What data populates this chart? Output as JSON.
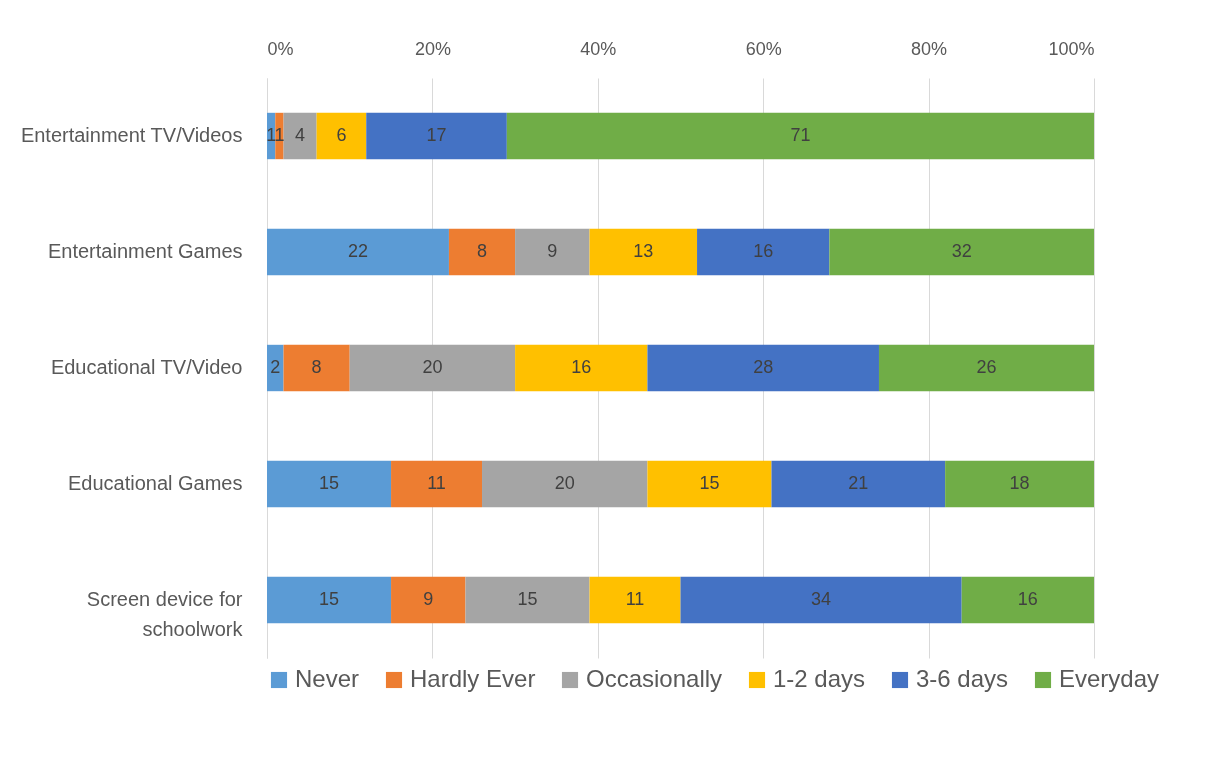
{
  "chart_data": {
    "type": "bar",
    "orientation": "horizontal",
    "stacked": true,
    "categories": [
      "Entertainment TV/Videos",
      "Entertainment Games",
      "Educational TV/Video",
      "Educational Games",
      "Screen device for schoolwork"
    ],
    "series": [
      {
        "name": "Never",
        "color": "#5b9bd5",
        "values": [
          1,
          22,
          2,
          15,
          15
        ]
      },
      {
        "name": "Hardly Ever",
        "color": "#ed7d31",
        "values": [
          1,
          8,
          8,
          11,
          9
        ]
      },
      {
        "name": "Occasionally",
        "color": "#a5a5a5",
        "values": [
          4,
          9,
          20,
          20,
          15
        ]
      },
      {
        "name": "1-2 days",
        "color": "#ffc000",
        "values": [
          6,
          13,
          16,
          15,
          11
        ]
      },
      {
        "name": "3-6 days",
        "color": "#4472c4",
        "values": [
          17,
          16,
          28,
          21,
          34
        ]
      },
      {
        "name": "Everyday",
        "color": "#70ad47",
        "values": [
          71,
          32,
          26,
          18,
          16
        ]
      }
    ],
    "xlim": [
      0,
      100
    ],
    "xticks": [
      {
        "value": 0,
        "label": "0%"
      },
      {
        "value": 20,
        "label": "20%"
      },
      {
        "value": 40,
        "label": "40%"
      },
      {
        "value": 60,
        "label": "60%"
      },
      {
        "value": 80,
        "label": "80%"
      },
      {
        "value": 100,
        "label": "100%"
      }
    ],
    "grid": "x",
    "legend": "bottom",
    "data_labels": true
  }
}
